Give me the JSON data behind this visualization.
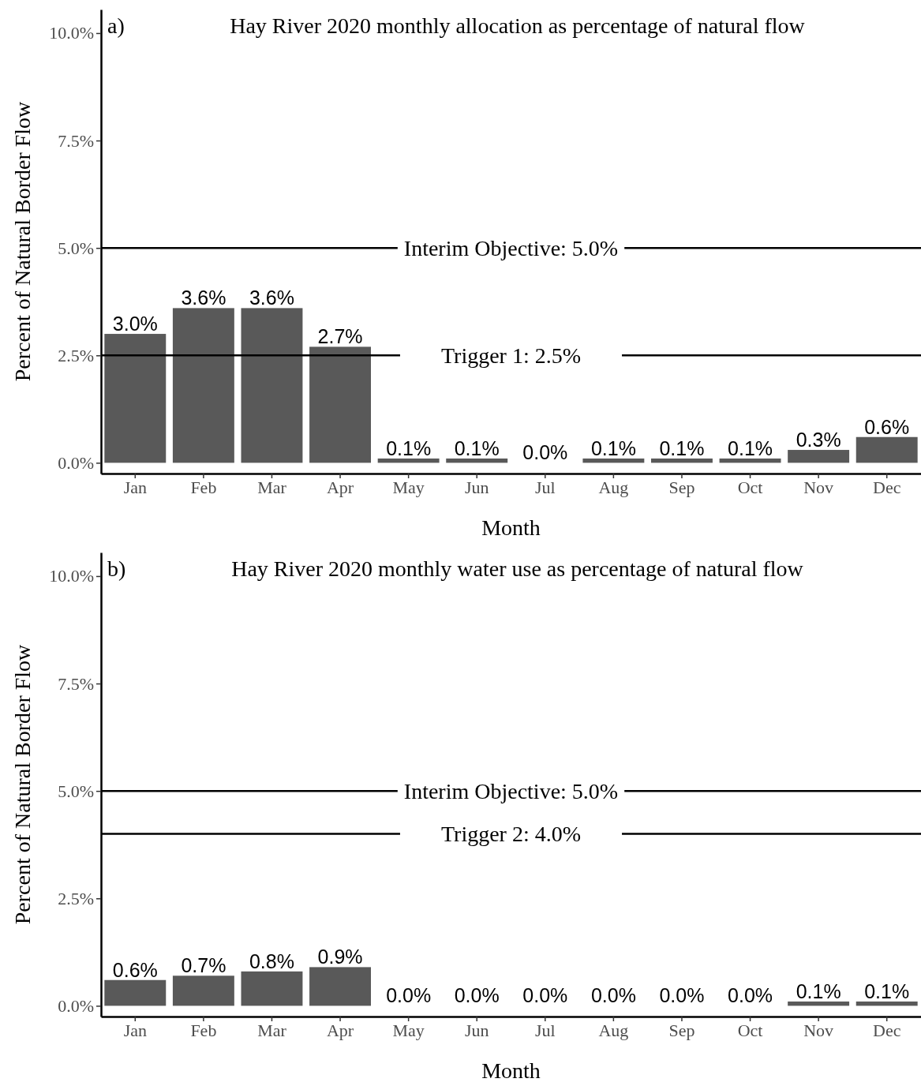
{
  "chart_data": [
    {
      "type": "bar",
      "title": "Hay River 2020 monthly allocation as percentage of natural flow",
      "xlabel": "Month",
      "ylabel": "Percent of Natural Border Flow",
      "annotations": [
        "a)"
      ],
      "categories": [
        "Jan",
        "Feb",
        "Mar",
        "Apr",
        "May",
        "Jun",
        "Jul",
        "Aug",
        "Sep",
        "Oct",
        "Nov",
        "Dec"
      ],
      "values": [
        3.0,
        3.6,
        3.6,
        2.7,
        0.1,
        0.1,
        0.0,
        0.1,
        0.1,
        0.1,
        0.3,
        0.6
      ],
      "color": "#595959",
      "value_labels": [
        "3.0%",
        "3.6%",
        "3.6%",
        "2.7%",
        "0.1%",
        "0.1%",
        "0.0%",
        "0.1%",
        "0.1%",
        "0.1%",
        "0.3%",
        "0.6%"
      ],
      "ylim": [
        -0.25,
        10.55
      ],
      "yticks": [
        {
          "value": 0,
          "label": "0.0%"
        },
        {
          "value": 2.5,
          "label": "2.5%"
        },
        {
          "value": 5,
          "label": "5.0%"
        },
        {
          "value": 7.5,
          "label": "7.5%"
        },
        {
          "value": 10,
          "label": "10.0%"
        }
      ],
      "ref_lines": [
        {
          "axis": "y",
          "value": 5.0,
          "label": "Interim Objective: 5.0%",
          "color": "#000000"
        },
        {
          "axis": "y",
          "value": 2.5,
          "label": "Trigger 1: 2.5%",
          "color": "#000000"
        }
      ]
    },
    {
      "type": "bar",
      "title": "Hay River 2020 monthly water use as percentage of natural flow",
      "xlabel": "Month",
      "ylabel": "Percent of Natural Border Flow",
      "annotations": [
        "b)"
      ],
      "categories": [
        "Jan",
        "Feb",
        "Mar",
        "Apr",
        "May",
        "Jun",
        "Jul",
        "Aug",
        "Sep",
        "Oct",
        "Nov",
        "Dec"
      ],
      "values": [
        0.6,
        0.7,
        0.8,
        0.9,
        0.0,
        0.0,
        0.0,
        0.0,
        0.0,
        0.0,
        0.1,
        0.1
      ],
      "color": "#595959",
      "value_labels": [
        "0.6%",
        "0.7%",
        "0.8%",
        "0.9%",
        "0.0%",
        "0.0%",
        "0.0%",
        "0.0%",
        "0.0%",
        "0.0%",
        "0.1%",
        "0.1%"
      ],
      "ylim": [
        -0.25,
        10.55
      ],
      "yticks": [
        {
          "value": 0,
          "label": "0.0%"
        },
        {
          "value": 2.5,
          "label": "2.5%"
        },
        {
          "value": 5,
          "label": "5.0%"
        },
        {
          "value": 7.5,
          "label": "7.5%"
        },
        {
          "value": 10,
          "label": "10.0%"
        }
      ],
      "ref_lines": [
        {
          "axis": "y",
          "value": 5.0,
          "label": "Interim Objective: 5.0%",
          "color": "#000000"
        },
        {
          "axis": "y",
          "value": 4.0,
          "label": "Trigger 2: 4.0%",
          "color": "#000000"
        }
      ]
    }
  ]
}
